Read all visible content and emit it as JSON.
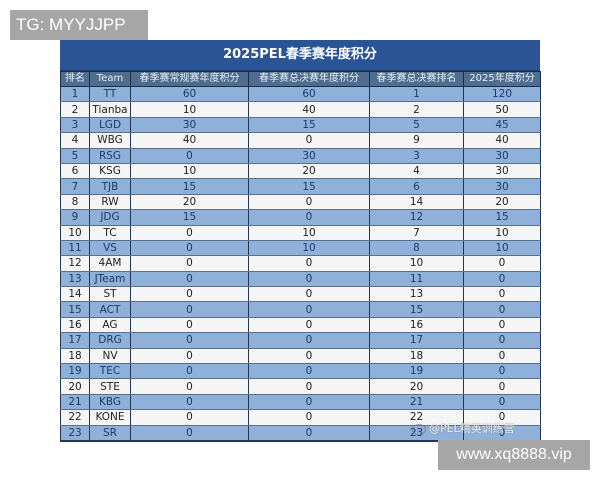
{
  "watermarks": {
    "top_left": "TG: MYYJJPP",
    "bottom_right": "www.xq8888.vip",
    "weibo": "@PEL精英训练营"
  },
  "table": {
    "title": "2025PEL春季赛年度积分",
    "headers": [
      "排名",
      "Team",
      "春季赛常规赛年度积分",
      "春季赛总决赛年度积分",
      "春季赛总决赛排名",
      "2025年度积分"
    ],
    "rows": [
      {
        "rank": "1",
        "team": "TT",
        "regular": "60",
        "finals": "60",
        "finals_rank": "1",
        "total": "120"
      },
      {
        "rank": "2",
        "team": "Tianba",
        "regular": "10",
        "finals": "40",
        "finals_rank": "2",
        "total": "50"
      },
      {
        "rank": "3",
        "team": "LGD",
        "regular": "30",
        "finals": "15",
        "finals_rank": "5",
        "total": "45"
      },
      {
        "rank": "4",
        "team": "WBG",
        "regular": "40",
        "finals": "0",
        "finals_rank": "9",
        "total": "40"
      },
      {
        "rank": "5",
        "team": "RSG",
        "regular": "0",
        "finals": "30",
        "finals_rank": "3",
        "total": "30"
      },
      {
        "rank": "6",
        "team": "KSG",
        "regular": "10",
        "finals": "20",
        "finals_rank": "4",
        "total": "30"
      },
      {
        "rank": "7",
        "team": "TJB",
        "regular": "15",
        "finals": "15",
        "finals_rank": "6",
        "total": "30"
      },
      {
        "rank": "8",
        "team": "RW",
        "regular": "20",
        "finals": "0",
        "finals_rank": "14",
        "total": "20"
      },
      {
        "rank": "9",
        "team": "JDG",
        "regular": "15",
        "finals": "0",
        "finals_rank": "12",
        "total": "15"
      },
      {
        "rank": "10",
        "team": "TC",
        "regular": "0",
        "finals": "10",
        "finals_rank": "7",
        "total": "10"
      },
      {
        "rank": "11",
        "team": "VS",
        "regular": "0",
        "finals": "10",
        "finals_rank": "8",
        "total": "10"
      },
      {
        "rank": "12",
        "team": "4AM",
        "regular": "0",
        "finals": "0",
        "finals_rank": "10",
        "total": "0"
      },
      {
        "rank": "13",
        "team": "JTeam",
        "regular": "0",
        "finals": "0",
        "finals_rank": "11",
        "total": "0"
      },
      {
        "rank": "14",
        "team": "ST",
        "regular": "0",
        "finals": "0",
        "finals_rank": "13",
        "total": "0"
      },
      {
        "rank": "15",
        "team": "ACT",
        "regular": "0",
        "finals": "0",
        "finals_rank": "15",
        "total": "0"
      },
      {
        "rank": "16",
        "team": "AG",
        "regular": "0",
        "finals": "0",
        "finals_rank": "16",
        "total": "0"
      },
      {
        "rank": "17",
        "team": "DRG",
        "regular": "0",
        "finals": "0",
        "finals_rank": "17",
        "total": "0"
      },
      {
        "rank": "18",
        "team": "NV",
        "regular": "0",
        "finals": "0",
        "finals_rank": "18",
        "total": "0"
      },
      {
        "rank": "19",
        "team": "TEC",
        "regular": "0",
        "finals": "0",
        "finals_rank": "19",
        "total": "0"
      },
      {
        "rank": "20",
        "team": "STE",
        "regular": "0",
        "finals": "0",
        "finals_rank": "20",
        "total": "0"
      },
      {
        "rank": "21",
        "team": "KBG",
        "regular": "0",
        "finals": "0",
        "finals_rank": "21",
        "total": "0"
      },
      {
        "rank": "22",
        "team": "KONE",
        "regular": "0",
        "finals": "0",
        "finals_rank": "22",
        "total": "0"
      },
      {
        "rank": "23",
        "team": "SR",
        "regular": "0",
        "finals": "0",
        "finals_rank": "23",
        "total": "0"
      }
    ]
  },
  "colors": {
    "title_band": "#2b5497",
    "header_row": "#4f6d8f",
    "odd_row": "#8fb0d8",
    "even_row": "#f5f5f5"
  }
}
